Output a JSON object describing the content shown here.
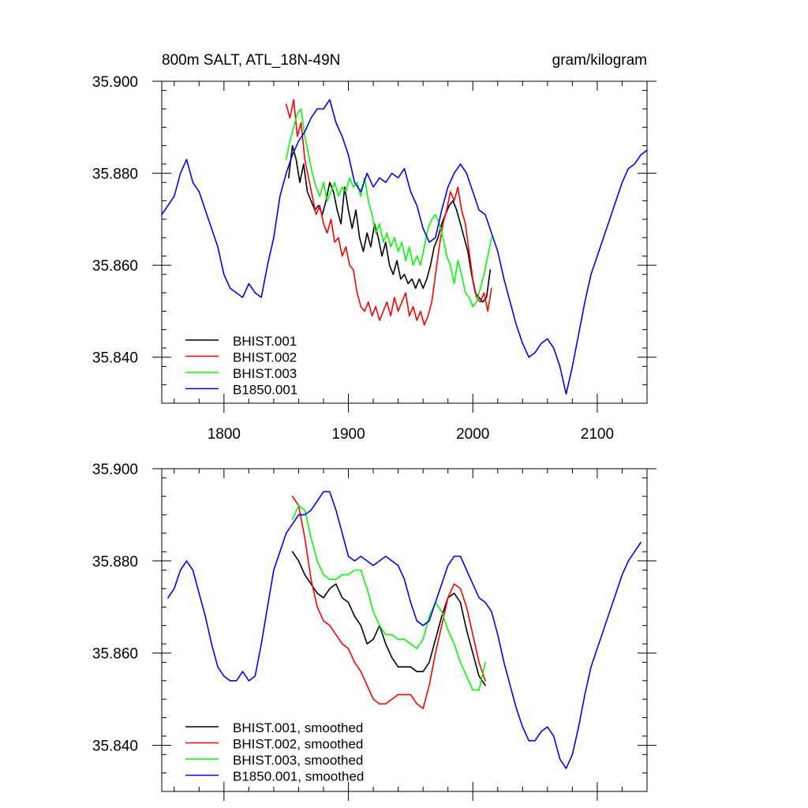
{
  "chart_data": [
    {
      "type": "line",
      "title": "800m SALT, ATL_18N-49N",
      "units": "gram/kilogram",
      "xlabel": "",
      "ylabel": "",
      "xlim": [
        1750,
        2140
      ],
      "ylim": [
        35.83,
        35.9
      ],
      "x_ticks": [
        1800,
        1900,
        2000,
        2100
      ],
      "y_ticks": [
        35.84,
        35.86,
        35.88,
        35.9
      ],
      "y_tick_labels": [
        "35.840",
        "35.860",
        "35.880",
        "35.900"
      ],
      "x_tick_labels": [
        "1800",
        "1900",
        "2000",
        "2100"
      ],
      "legend_position": "bottom-left",
      "series": [
        {
          "name": "BHIST.001",
          "color": "#000000",
          "x": [
            1852,
            1855,
            1858,
            1861,
            1864,
            1867,
            1870,
            1873,
            1876,
            1879,
            1882,
            1885,
            1888,
            1891,
            1894,
            1897,
            1900,
            1903,
            1906,
            1909,
            1912,
            1915,
            1918,
            1921,
            1924,
            1927,
            1930,
            1933,
            1936,
            1939,
            1942,
            1945,
            1948,
            1951,
            1954,
            1957,
            1960,
            1963,
            1966,
            1969,
            1972,
            1975,
            1978,
            1981,
            1984,
            1987,
            1990,
            1993,
            1996,
            1999,
            2002,
            2005,
            2008,
            2011,
            2014
          ],
          "values": [
            35.879,
            35.886,
            35.883,
            35.878,
            35.882,
            35.876,
            35.874,
            35.872,
            35.873,
            35.871,
            35.874,
            35.878,
            35.876,
            35.872,
            35.869,
            35.877,
            35.872,
            35.868,
            35.872,
            35.866,
            35.863,
            35.867,
            35.864,
            35.869,
            35.866,
            35.862,
            35.865,
            35.86,
            35.858,
            35.861,
            35.857,
            35.858,
            35.856,
            35.857,
            35.855,
            35.857,
            35.855,
            35.857,
            35.86,
            35.864,
            35.866,
            35.869,
            35.871,
            35.873,
            35.874,
            35.872,
            35.869,
            35.866,
            35.863,
            35.858,
            35.854,
            35.853,
            35.852,
            35.853,
            35.859
          ]
        },
        {
          "name": "BHIST.002",
          "color": "#ff0000",
          "x": [
            1850,
            1853,
            1856,
            1859,
            1862,
            1865,
            1868,
            1871,
            1874,
            1877,
            1880,
            1883,
            1886,
            1889,
            1892,
            1895,
            1898,
            1901,
            1904,
            1907,
            1910,
            1913,
            1916,
            1919,
            1922,
            1925,
            1928,
            1931,
            1934,
            1937,
            1940,
            1943,
            1946,
            1949,
            1952,
            1955,
            1958,
            1961,
            1964,
            1967,
            1970,
            1973,
            1976,
            1979,
            1982,
            1985,
            1988,
            1991,
            1994,
            1997,
            2000,
            2003,
            2006,
            2009,
            2012,
            2015
          ],
          "values": [
            35.895,
            35.892,
            35.896,
            35.888,
            35.891,
            35.883,
            35.879,
            35.875,
            35.871,
            35.873,
            35.869,
            35.867,
            35.87,
            35.865,
            35.866,
            35.862,
            35.864,
            35.86,
            35.859,
            35.854,
            35.851,
            35.85,
            35.852,
            35.849,
            35.851,
            35.848,
            35.85,
            35.852,
            35.849,
            35.853,
            35.85,
            35.852,
            35.854,
            35.849,
            35.851,
            35.848,
            35.85,
            35.847,
            35.849,
            35.852,
            35.858,
            35.864,
            35.869,
            35.872,
            35.876,
            35.874,
            35.877,
            35.872,
            35.869,
            35.863,
            35.857,
            35.853,
            35.852,
            35.854,
            35.85,
            35.855
          ]
        },
        {
          "name": "BHIST.003",
          "color": "#00ff00",
          "x": [
            1850,
            1853,
            1856,
            1859,
            1862,
            1865,
            1868,
            1871,
            1874,
            1877,
            1880,
            1883,
            1886,
            1889,
            1892,
            1895,
            1898,
            1901,
            1904,
            1907,
            1910,
            1913,
            1916,
            1919,
            1922,
            1925,
            1928,
            1931,
            1934,
            1937,
            1940,
            1943,
            1946,
            1949,
            1952,
            1955,
            1958,
            1961,
            1964,
            1967,
            1970,
            1973,
            1976,
            1979,
            1982,
            1985,
            1988,
            1991,
            1994,
            1997,
            2000,
            2003,
            2006,
            2009,
            2012,
            2015
          ],
          "values": [
            35.883,
            35.887,
            35.89,
            35.893,
            35.894,
            35.888,
            35.884,
            35.88,
            35.877,
            35.875,
            35.878,
            35.874,
            35.876,
            35.878,
            35.875,
            35.877,
            35.876,
            35.879,
            35.877,
            35.878,
            35.875,
            35.879,
            35.874,
            35.871,
            35.867,
            35.869,
            35.865,
            35.867,
            35.864,
            35.866,
            35.863,
            35.865,
            35.861,
            35.864,
            35.86,
            35.862,
            35.86,
            35.864,
            35.868,
            35.87,
            35.871,
            35.869,
            35.866,
            35.862,
            35.86,
            35.856,
            35.861,
            35.858,
            35.854,
            35.853,
            35.851,
            35.852,
            35.855,
            35.858,
            35.862,
            35.866
          ]
        },
        {
          "name": "B1850.001",
          "color": "#0000ff",
          "x": [
            1750,
            1755,
            1760,
            1765,
            1770,
            1775,
            1780,
            1785,
            1790,
            1795,
            1800,
            1805,
            1810,
            1815,
            1820,
            1825,
            1830,
            1835,
            1840,
            1845,
            1850,
            1855,
            1860,
            1865,
            1870,
            1875,
            1880,
            1885,
            1890,
            1895,
            1900,
            1905,
            1910,
            1915,
            1920,
            1925,
            1930,
            1935,
            1940,
            1945,
            1950,
            1955,
            1960,
            1965,
            1970,
            1975,
            1980,
            1985,
            1990,
            1995,
            2000,
            2005,
            2010,
            2015,
            2020,
            2025,
            2030,
            2035,
            2040,
            2045,
            2050,
            2055,
            2060,
            2065,
            2070,
            2075,
            2080,
            2085,
            2090,
            2095,
            2100,
            2105,
            2110,
            2115,
            2120,
            2125,
            2130,
            2135,
            2140
          ],
          "values": [
            35.871,
            35.873,
            35.875,
            35.88,
            35.883,
            35.878,
            35.876,
            35.872,
            35.868,
            35.864,
            35.858,
            35.855,
            35.854,
            35.853,
            35.856,
            35.854,
            35.853,
            35.86,
            35.866,
            35.875,
            35.88,
            35.884,
            35.887,
            35.889,
            35.892,
            35.894,
            35.894,
            35.896,
            35.891,
            35.888,
            35.884,
            35.878,
            35.876,
            35.88,
            35.877,
            35.879,
            35.878,
            35.88,
            35.879,
            35.881,
            35.876,
            35.873,
            35.868,
            35.865,
            35.866,
            35.872,
            35.877,
            35.88,
            35.882,
            35.88,
            35.876,
            35.872,
            35.871,
            35.867,
            35.863,
            35.857,
            35.852,
            35.847,
            35.843,
            35.84,
            35.841,
            35.843,
            35.844,
            35.842,
            35.838,
            35.832,
            35.838,
            35.845,
            35.852,
            35.858,
            35.862,
            35.866,
            35.87,
            35.874,
            35.878,
            35.881,
            35.882,
            35.884,
            35.885
          ]
        }
      ]
    },
    {
      "type": "line",
      "title": "",
      "units": "",
      "xlabel": "",
      "ylabel": "",
      "xlim": [
        1750,
        2140
      ],
      "ylim": [
        35.83,
        35.9
      ],
      "x_ticks": [
        1800,
        1900,
        2000,
        2100
      ],
      "y_ticks": [
        35.84,
        35.86,
        35.88,
        35.9
      ],
      "y_tick_labels": [
        "35.840",
        "35.860",
        "35.880",
        "35.900"
      ],
      "x_tick_labels": [],
      "legend_position": "bottom-left",
      "series": [
        {
          "name": "BHIST.001, smoothed",
          "color": "#000000",
          "x": [
            1855,
            1860,
            1865,
            1870,
            1875,
            1880,
            1885,
            1890,
            1895,
            1900,
            1905,
            1910,
            1915,
            1920,
            1925,
            1930,
            1935,
            1940,
            1945,
            1950,
            1955,
            1960,
            1965,
            1970,
            1975,
            1980,
            1985,
            1990,
            1995,
            2000,
            2005,
            2010
          ],
          "values": [
            35.882,
            35.88,
            35.877,
            35.875,
            35.873,
            35.872,
            35.874,
            35.875,
            35.872,
            35.871,
            35.868,
            35.866,
            35.862,
            35.863,
            35.866,
            35.862,
            35.859,
            35.857,
            35.857,
            35.857,
            35.856,
            35.856,
            35.858,
            35.863,
            35.868,
            35.872,
            35.873,
            35.871,
            35.865,
            35.86,
            35.855,
            35.853
          ]
        },
        {
          "name": "BHIST.002, smoothed",
          "color": "#ff0000",
          "x": [
            1855,
            1860,
            1865,
            1870,
            1875,
            1880,
            1885,
            1890,
            1895,
            1900,
            1905,
            1910,
            1915,
            1920,
            1925,
            1930,
            1935,
            1940,
            1945,
            1950,
            1955,
            1960,
            1965,
            1970,
            1975,
            1980,
            1985,
            1990,
            1995,
            2000,
            2005,
            2010
          ],
          "values": [
            35.894,
            35.892,
            35.885,
            35.876,
            35.87,
            35.867,
            35.866,
            35.864,
            35.862,
            35.861,
            35.858,
            35.856,
            35.853,
            35.85,
            35.849,
            35.849,
            35.85,
            35.851,
            35.851,
            35.851,
            35.849,
            35.848,
            35.853,
            35.86,
            35.866,
            35.872,
            35.875,
            35.874,
            35.87,
            35.864,
            35.858,
            35.854
          ]
        },
        {
          "name": "BHIST.003, smoothed",
          "color": "#00ff00",
          "x": [
            1855,
            1860,
            1865,
            1870,
            1875,
            1880,
            1885,
            1890,
            1895,
            1900,
            1905,
            1910,
            1915,
            1920,
            1925,
            1930,
            1935,
            1940,
            1945,
            1950,
            1955,
            1960,
            1965,
            1970,
            1975,
            1980,
            1985,
            1990,
            1995,
            2000,
            2005,
            2010
          ],
          "values": [
            35.889,
            35.892,
            35.891,
            35.885,
            35.88,
            35.877,
            35.876,
            35.876,
            35.877,
            35.877,
            35.878,
            35.878,
            35.874,
            35.869,
            35.866,
            35.864,
            35.864,
            35.863,
            35.863,
            35.862,
            35.861,
            35.863,
            35.868,
            35.871,
            35.869,
            35.865,
            35.862,
            35.858,
            35.855,
            35.852,
            35.852,
            35.858
          ]
        },
        {
          "name": "B1850.001, smoothed",
          "color": "#0000ff",
          "x": [
            1755,
            1760,
            1765,
            1770,
            1775,
            1780,
            1785,
            1790,
            1795,
            1800,
            1805,
            1810,
            1815,
            1820,
            1825,
            1830,
            1835,
            1840,
            1845,
            1850,
            1855,
            1860,
            1865,
            1870,
            1875,
            1880,
            1885,
            1890,
            1895,
            1900,
            1905,
            1910,
            1915,
            1920,
            1925,
            1930,
            1935,
            1940,
            1945,
            1950,
            1955,
            1960,
            1965,
            1970,
            1975,
            1980,
            1985,
            1990,
            1995,
            2000,
            2005,
            2010,
            2015,
            2020,
            2025,
            2030,
            2035,
            2040,
            2045,
            2050,
            2055,
            2060,
            2065,
            2070,
            2075,
            2080,
            2085,
            2090,
            2095,
            2100,
            2105,
            2110,
            2115,
            2120,
            2125,
            2130,
            2135
          ],
          "values": [
            35.872,
            35.874,
            35.878,
            35.88,
            35.878,
            35.873,
            35.868,
            35.862,
            35.857,
            35.855,
            35.854,
            35.854,
            35.856,
            35.854,
            35.855,
            35.862,
            35.87,
            35.878,
            35.882,
            35.886,
            35.888,
            35.89,
            35.89,
            35.891,
            35.893,
            35.895,
            35.895,
            35.891,
            35.886,
            35.881,
            35.88,
            35.881,
            35.88,
            35.879,
            35.88,
            35.881,
            35.88,
            35.879,
            35.876,
            35.871,
            35.867,
            35.866,
            35.867,
            35.871,
            35.875,
            35.879,
            35.881,
            35.881,
            35.878,
            35.875,
            35.872,
            35.871,
            35.869,
            35.864,
            35.858,
            35.853,
            35.848,
            35.844,
            35.841,
            35.841,
            35.843,
            35.844,
            35.842,
            35.837,
            35.835,
            35.838,
            35.844,
            35.851,
            35.857,
            35.861,
            35.865,
            35.869,
            35.873,
            35.877,
            35.88,
            35.882,
            35.884
          ]
        }
      ]
    }
  ]
}
